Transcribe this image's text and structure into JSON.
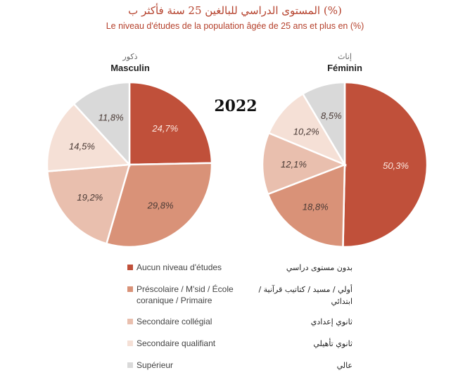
{
  "header": {
    "title_ar": "المستوى الدراسي للبالغين 25 سنة فأكثر ب (%)",
    "title_fr": "Le niveau d'études de la population âgée de 25 ans et plus en (%)"
  },
  "year_label": "2022",
  "colors": {
    "title": "#b5412c",
    "categories": [
      "#c0503a",
      "#d99278",
      "#e9bfae",
      "#f5e0d6",
      "#d9d9d9"
    ]
  },
  "chart_data": [
    {
      "type": "pie",
      "title": "Masculin",
      "title_ar": "ذكور",
      "categories": [
        "Aucun niveau d'études",
        "Préscolaire / M'sid / École coranique / Primaire",
        "Secondaire collégial",
        "Secondaire qualifiant",
        "Supérieur"
      ],
      "values": [
        24.7,
        29.8,
        19.2,
        14.5,
        11.8
      ],
      "value_labels": [
        "24,7%",
        "29,8%",
        "19,2%",
        "14,5%",
        "11,8%"
      ]
    },
    {
      "type": "pie",
      "title": "Féminin",
      "title_ar": "إناث",
      "categories": [
        "Aucun niveau d'études",
        "Préscolaire / M'sid / École coranique / Primaire",
        "Secondaire collégial",
        "Secondaire qualifiant",
        "Supérieur"
      ],
      "values": [
        50.3,
        18.8,
        12.1,
        10.2,
        8.5
      ],
      "value_labels": [
        "50,3%",
        "18,8%",
        "12,1%",
        "10,2%",
        "8,5%"
      ]
    }
  ],
  "legend": [
    {
      "fr": "Aucun niveau d'études",
      "ar": "بدون مستوى دراسي"
    },
    {
      "fr": "Préscolaire / M'sid / École coranique / Primaire",
      "ar": "أولي / مسيد / كتاتيب قرآنية / ابتدائي"
    },
    {
      "fr": "Secondaire collégial",
      "ar": "ثانوي إعدادي"
    },
    {
      "fr": "Secondaire qualifiant",
      "ar": "ثانوي تأهيلي"
    },
    {
      "fr": "Supérieur",
      "ar": "عالي"
    }
  ]
}
